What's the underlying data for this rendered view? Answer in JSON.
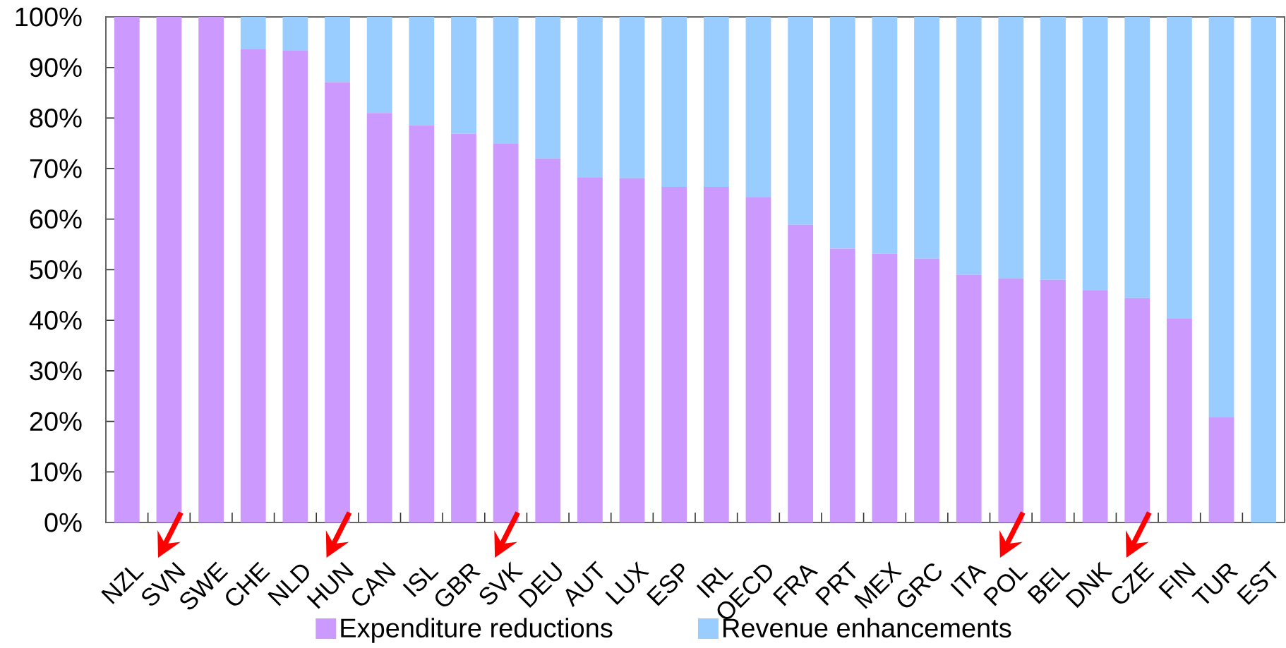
{
  "chart_data": {
    "type": "bar",
    "stacked": true,
    "categories": [
      "NZL",
      "SVN",
      "SWE",
      "CHE",
      "NLD",
      "HUN",
      "CAN",
      "ISL",
      "GBR",
      "SVK",
      "DEU",
      "AUT",
      "LUX",
      "ESP",
      "IRL",
      "OECD",
      "FRA",
      "PRT",
      "MEX",
      "GRC",
      "ITA",
      "POL",
      "BEL",
      "DNK",
      "CZE",
      "FIN",
      "TUR",
      "EST"
    ],
    "series": [
      {
        "name": "Expenditure reductions",
        "color": "#cc99ff",
        "values": [
          100,
          100,
          100,
          93.7,
          93.4,
          87.1,
          81.0,
          78.6,
          76.9,
          75.0,
          72.0,
          68.3,
          68.1,
          66.4,
          66.4,
          64.4,
          58.9,
          54.2,
          53.2,
          52.2,
          49.0,
          48.3,
          48.0,
          46.0,
          44.4,
          40.4,
          20.9,
          0
        ]
      },
      {
        "name": "Revenue enhancements",
        "color": "#99ccff",
        "values": [
          0,
          0,
          0,
          6.3,
          6.6,
          12.9,
          19.0,
          21.4,
          23.1,
          25.0,
          28.0,
          31.7,
          31.9,
          33.6,
          33.6,
          35.6,
          41.1,
          45.8,
          46.8,
          47.8,
          51.0,
          51.7,
          52.0,
          54.0,
          55.6,
          59.6,
          79.1,
          100
        ]
      }
    ],
    "ylim": [
      0,
      100
    ],
    "yticks": [
      {
        "value": 0,
        "label": "0%"
      },
      {
        "value": 10,
        "label": "10%"
      },
      {
        "value": 20,
        "label": "20%"
      },
      {
        "value": 30,
        "label": "30%"
      },
      {
        "value": 40,
        "label": "40%"
      },
      {
        "value": 50,
        "label": "50%"
      },
      {
        "value": 60,
        "label": "60%"
      },
      {
        "value": 70,
        "label": "70%"
      },
      {
        "value": 80,
        "label": "80%"
      },
      {
        "value": 90,
        "label": "90%"
      },
      {
        "value": 100,
        "label": "100%"
      }
    ],
    "legend": "bottom"
  }
}
